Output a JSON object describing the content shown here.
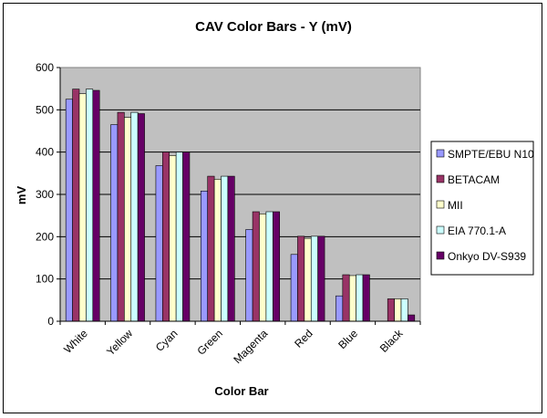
{
  "chart_data": {
    "type": "bar",
    "title": "CAV Color Bars - Y (mV)",
    "xlabel": "Color Bar",
    "ylabel": "mV",
    "ylim": [
      0,
      600
    ],
    "yticks": [
      0,
      100,
      200,
      300,
      400,
      500,
      600
    ],
    "grid": true,
    "legend_position": "right",
    "categories": [
      "White",
      "Yellow",
      "Cyan",
      "Green",
      "Magenta",
      "Red",
      "Blue",
      "Black"
    ],
    "series": [
      {
        "name": "SMPTE/EBU N10",
        "color": "#9999ff",
        "values": [
          525,
          465,
          368,
          308,
          217,
          158,
          60,
          0
        ]
      },
      {
        "name": "BETACAM",
        "color": "#993366",
        "values": [
          549,
          494,
          400,
          343,
          259,
          201,
          110,
          53
        ]
      },
      {
        "name": "MII",
        "color": "#ffffcc",
        "values": [
          538,
          482,
          392,
          336,
          254,
          196,
          108,
          53
        ]
      },
      {
        "name": "EIA 770.1-A",
        "color": "#ccffff",
        "values": [
          549,
          494,
          400,
          343,
          259,
          201,
          110,
          53
        ]
      },
      {
        "name": "Onkyo DV-S939",
        "color": "#660066",
        "values": [
          546,
          491,
          400,
          343,
          259,
          201,
          110,
          15
        ]
      }
    ],
    "plot_background": "#c0c0c0"
  }
}
